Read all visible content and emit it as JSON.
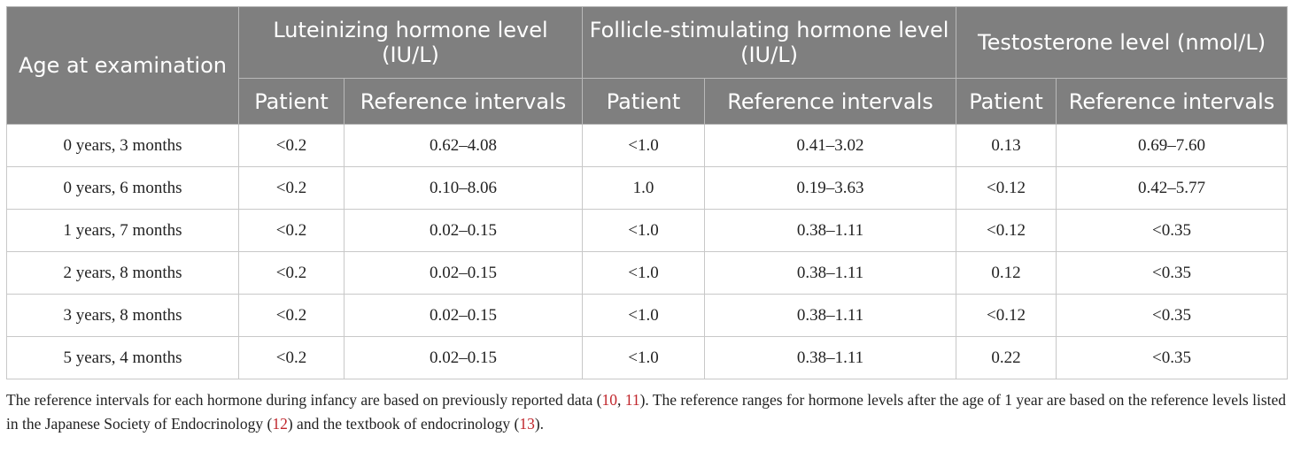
{
  "table": {
    "headers": {
      "age": "Age at examination",
      "lh": "Luteinizing hormone level (IU/L)",
      "fsh": "Follicle-stimulating hormone level (IU/L)",
      "testosterone": "Testosterone level (nmol/L)",
      "patient": "Patient",
      "reference": "Reference intervals"
    },
    "rows": [
      {
        "age": "0 years, 3 months",
        "lh_patient": "<0.2",
        "lh_ref": "0.62–4.08",
        "fsh_patient": "<1.0",
        "fsh_ref": "0.41–3.02",
        "t_patient": "0.13",
        "t_ref": "0.69–7.60"
      },
      {
        "age": "0 years, 6 months",
        "lh_patient": "<0.2",
        "lh_ref": "0.10–8.06",
        "fsh_patient": "1.0",
        "fsh_ref": "0.19–3.63",
        "t_patient": "<0.12",
        "t_ref": "0.42–5.77"
      },
      {
        "age": "1 years, 7 months",
        "lh_patient": "<0.2",
        "lh_ref": "0.02–0.15",
        "fsh_patient": "<1.0",
        "fsh_ref": "0.38–1.11",
        "t_patient": "<0.12",
        "t_ref": "<0.35"
      },
      {
        "age": "2 years, 8 months",
        "lh_patient": "<0.2",
        "lh_ref": "0.02–0.15",
        "fsh_patient": "<1.0",
        "fsh_ref": "0.38–1.11",
        "t_patient": "0.12",
        "t_ref": "<0.35"
      },
      {
        "age": "3 years, 8 months",
        "lh_patient": "<0.2",
        "lh_ref": "0.02–0.15",
        "fsh_patient": "<1.0",
        "fsh_ref": "0.38–1.11",
        "t_patient": "<0.12",
        "t_ref": "<0.35"
      },
      {
        "age": "5 years, 4 months",
        "lh_patient": "<0.2",
        "lh_ref": "0.02–0.15",
        "fsh_patient": "<1.0",
        "fsh_ref": "0.38–1.11",
        "t_patient": "0.22",
        "t_ref": "<0.35"
      }
    ]
  },
  "footnote": {
    "t1": "The reference intervals for each hormone during infancy are based on previously reported data (",
    "r1": "10",
    "t2": ", ",
    "r2": "11",
    "t3": "). The reference ranges for hormone levels after the age of 1 year are based on the reference levels listed in the Japanese Society of Endocrinology (",
    "r3": "12",
    "t4": ") and the textbook of endocrinology (",
    "r4": "13",
    "t5": ")."
  }
}
